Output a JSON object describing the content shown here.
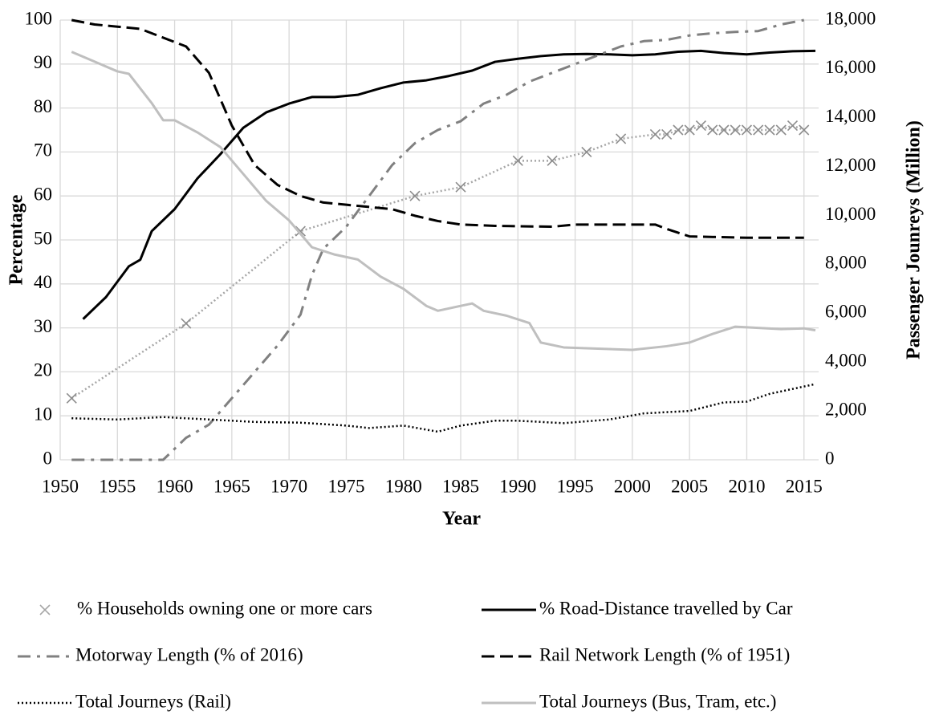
{
  "chart_data": {
    "type": "line",
    "x_label": "Year",
    "y_label": "Percentage",
    "y2_label": "Passenger Jounreys (Million)",
    "xlim": [
      1950,
      2016
    ],
    "xticks": [
      1950,
      1955,
      1960,
      1965,
      1970,
      1975,
      1980,
      1985,
      1990,
      1995,
      2000,
      2005,
      2010,
      2015
    ],
    "ylim": [
      0,
      100
    ],
    "yticks": [
      0,
      10,
      20,
      30,
      40,
      50,
      60,
      70,
      80,
      90,
      100
    ],
    "y2lim": [
      0,
      18000
    ],
    "y2ticks": [
      0,
      {
        "value": 2000,
        "label": "2,000"
      },
      {
        "value": 4000,
        "label": "4,000"
      },
      {
        "value": 6000,
        "label": "6,000"
      },
      {
        "value": 8000,
        "label": "8,000"
      },
      {
        "value": 10000,
        "label": "10,000"
      },
      {
        "value": 12000,
        "label": "12,000"
      },
      {
        "value": 14000,
        "label": "14,000"
      },
      {
        "value": 16000,
        "label": "16,000"
      },
      {
        "value": 18000,
        "label": "18,000"
      }
    ],
    "grid": true,
    "legend": "bottom",
    "series": [
      {
        "name": "% Households owning one or more cars",
        "color": "#a6a6a6",
        "style": "dotted",
        "marker": "x",
        "x": [
          1951,
          1961,
          1971,
          1981,
          1985,
          1990,
          1993,
          1996,
          1999,
          2002,
          2003,
          2004,
          2005,
          2006,
          2007,
          2008,
          2009,
          2010,
          2011,
          2012,
          2013,
          2014,
          2015
        ],
        "values": [
          14,
          31,
          52,
          60,
          62,
          68,
          68,
          70,
          73,
          74,
          74,
          75,
          75,
          76,
          75,
          75,
          75,
          75,
          75,
          75,
          75,
          76,
          75
        ]
      },
      {
        "name": "% Road-Distance travelled by Car",
        "color": "#000000",
        "style": "solid",
        "x": [
          1952,
          1954,
          1956,
          1957,
          1958,
          1960,
          1962,
          1964,
          1966,
          1968,
          1970,
          1972,
          1974,
          1976,
          1978,
          1980,
          1982,
          1984,
          1986,
          1988,
          1990,
          1992,
          1994,
          1996,
          1998,
          2000,
          2002,
          2004,
          2006,
          2008,
          2010,
          2012,
          2014,
          2016
        ],
        "values": [
          32,
          37,
          44,
          45.5,
          52,
          57,
          64,
          69.5,
          75.5,
          79,
          81,
          82.5,
          82.5,
          83,
          84.5,
          85.8,
          86.3,
          87.3,
          88.5,
          90.5,
          91.2,
          91.8,
          92.2,
          92.3,
          92.2,
          92,
          92.2,
          92.8,
          93,
          92.5,
          92.2,
          92.6,
          92.9,
          93
        ]
      },
      {
        "name": "Motorway Length (% of 2016)",
        "color": "#808080",
        "style": "dashdot",
        "x": [
          1951,
          1959,
          1961,
          1963,
          1965,
          1967,
          1969,
          1971,
          1972,
          1973,
          1975,
          1977,
          1979,
          1981,
          1983,
          1985,
          1987,
          1989,
          1991,
          1993,
          1995,
          1997,
          1999,
          2001,
          2003,
          2005,
          2007,
          2009,
          2011,
          2013,
          2015
        ],
        "values": [
          0,
          0,
          5,
          8,
          14,
          20,
          26,
          33,
          42,
          48,
          53,
          60,
          67,
          72,
          75,
          77,
          81,
          83,
          86,
          88,
          90,
          92,
          94,
          95.2,
          95.5,
          96.5,
          97,
          97.3,
          97.5,
          99,
          100
        ]
      },
      {
        "name": "Rail Network Length (% of 1951)",
        "color": "#000000",
        "style": "dashed",
        "x": [
          1951,
          1953,
          1955,
          1957,
          1959,
          1961,
          1963,
          1965,
          1967,
          1969,
          1971,
          1973,
          1975,
          1977,
          1979,
          1981,
          1983,
          1985,
          1988,
          1993,
          1995,
          2000,
          2002,
          2003,
          2005,
          2010,
          2015
        ],
        "values": [
          100,
          99,
          98.5,
          98,
          96,
          94,
          88,
          76,
          67,
          62.5,
          60,
          58.5,
          58,
          57.5,
          57,
          55.5,
          54.3,
          53.5,
          53.2,
          53,
          53.5,
          53.5,
          53.5,
          52.5,
          50.8,
          50.5,
          50.5
        ]
      },
      {
        "name": "Total Journeys (Rail)",
        "color": "#000000",
        "style": "dotted",
        "axis": "y2",
        "x": [
          1951,
          1955,
          1959,
          1963,
          1967,
          1971,
          1975,
          1977,
          1980,
          1983,
          1985,
          1988,
          1990,
          1994,
          1998,
          2001,
          2005,
          2008,
          2010,
          2012,
          2016
        ],
        "values": [
          1700,
          1650,
          1750,
          1650,
          1550,
          1520,
          1400,
          1300,
          1400,
          1150,
          1400,
          1600,
          1600,
          1500,
          1650,
          1900,
          2000,
          2350,
          2380,
          2700,
          3100
        ]
      },
      {
        "name": "Total Journeys (Bus, Tram, etc.)",
        "color": "#bfbfbf",
        "style": "solid",
        "axis": "y2",
        "x": [
          1951,
          1953,
          1955,
          1956,
          1958,
          1959,
          1960,
          1962,
          1964,
          1966,
          1968,
          1970,
          1972,
          1974,
          1976,
          1978,
          1980,
          1982,
          1983,
          1985,
          1986,
          1987,
          1989,
          1991,
          1992,
          1994,
          1997,
          2000,
          2003,
          2005,
          2007,
          2009,
          2011,
          2013,
          2015,
          2016
        ],
        "values": [
          16700,
          16300,
          15900,
          15800,
          14600,
          13900,
          13900,
          13400,
          12800,
          11700,
          10600,
          9800,
          8700,
          8400,
          8200,
          7500,
          7000,
          6300,
          6100,
          6300,
          6400,
          6100,
          5900,
          5600,
          4800,
          4600,
          4550,
          4500,
          4650,
          4800,
          5150,
          5450,
          5400,
          5350,
          5380,
          5300
        ]
      }
    ]
  }
}
